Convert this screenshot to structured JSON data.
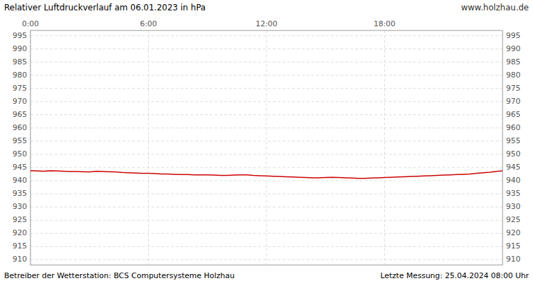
{
  "chart_data": {
    "type": "line",
    "title": "Relativer Luftdruckverlauf am 06.01.2023 in hPa",
    "annotations": [
      "www.holzhau.de",
      "Betreiber der Wetterstation: BCS Computersysteme Holzhau",
      "Letzte Messung: 25.04.2024 08:00 Uhr"
    ],
    "color": "#cc0000",
    "grid": true,
    "xlim": [
      0,
      1440
    ],
    "xticks": [
      {
        "value": 0,
        "label": "0:00"
      },
      {
        "value": 360,
        "label": "6:00"
      },
      {
        "value": 720,
        "label": "12:00"
      },
      {
        "value": 1080,
        "label": "18:00"
      }
    ],
    "ylim": [
      908,
      997
    ],
    "yticks": [
      910,
      915,
      920,
      925,
      930,
      935,
      940,
      945,
      950,
      955,
      960,
      965,
      970,
      975,
      980,
      985,
      990,
      995
    ],
    "x": [
      0,
      20,
      40,
      60,
      80,
      100,
      120,
      140,
      160,
      180,
      200,
      220,
      240,
      260,
      280,
      300,
      320,
      340,
      360,
      380,
      400,
      420,
      440,
      460,
      480,
      500,
      520,
      540,
      560,
      580,
      600,
      620,
      640,
      660,
      680,
      700,
      720,
      740,
      760,
      780,
      800,
      820,
      840,
      860,
      880,
      900,
      920,
      940,
      960,
      980,
      1000,
      1020,
      1040,
      1060,
      1080,
      1100,
      1120,
      1140,
      1160,
      1180,
      1200,
      1220,
      1240,
      1260,
      1280,
      1300,
      1320,
      1340,
      1360,
      1380,
      1400,
      1420,
      1440
    ],
    "values": [
      943.8,
      943.7,
      943.6,
      943.8,
      943.7,
      943.6,
      943.5,
      943.5,
      943.4,
      943.3,
      943.6,
      943.5,
      943.4,
      943.3,
      943.1,
      943.0,
      942.9,
      942.8,
      942.8,
      942.7,
      942.5,
      942.5,
      942.4,
      942.3,
      942.3,
      942.2,
      942.2,
      942.2,
      942.1,
      942.0,
      942.0,
      942.1,
      942.2,
      942.2,
      942.0,
      941.9,
      941.8,
      941.7,
      941.6,
      941.5,
      941.4,
      941.3,
      941.2,
      941.1,
      941.1,
      941.2,
      941.3,
      941.2,
      941.1,
      941.0,
      940.9,
      940.9,
      941.0,
      941.1,
      941.2,
      941.3,
      941.4,
      941.5,
      941.6,
      941.7,
      941.8,
      941.9,
      942.0,
      942.1,
      942.2,
      942.3,
      942.4,
      942.5,
      942.8,
      943.0,
      943.2,
      943.5,
      943.7
    ]
  }
}
